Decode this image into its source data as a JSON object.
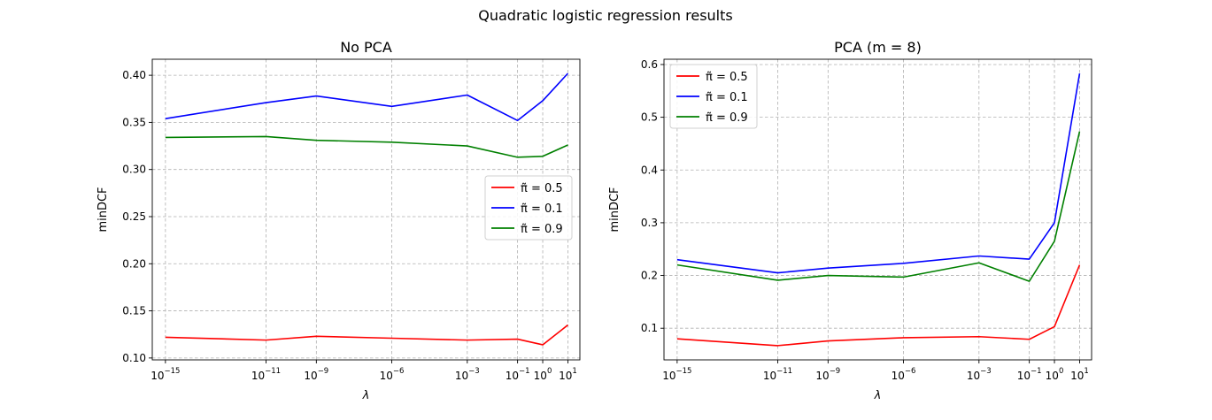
{
  "suptitle": "Quadratic logistic regression results",
  "chart_data": [
    {
      "type": "line",
      "title": "No PCA",
      "xlabel": "λ",
      "ylabel": "minDCF",
      "xscale": "log",
      "grid": true,
      "legend_position": "center-right",
      "x": [
        1e-15,
        1e-11,
        1e-09,
        1e-06,
        0.001,
        0.1,
        1,
        10
      ],
      "xticks": [
        1e-15,
        1e-11,
        1e-09,
        1e-06,
        0.001,
        0.1,
        1,
        10
      ],
      "xtick_labels": [
        {
          "base": "10",
          "exp": "−15"
        },
        {
          "base": "10",
          "exp": "−11"
        },
        {
          "base": "10",
          "exp": "−9"
        },
        {
          "base": "10",
          "exp": "−6"
        },
        {
          "base": "10",
          "exp": "−3"
        },
        {
          "base": "10",
          "exp": "−1"
        },
        {
          "base": "10",
          "exp": "0"
        },
        {
          "base": "10",
          "exp": "1"
        }
      ],
      "ylim": [
        0.098,
        0.417
      ],
      "yticks": [
        0.1,
        0.15,
        0.2,
        0.25,
        0.3,
        0.35,
        0.4
      ],
      "ytick_labels": [
        "0.10",
        "0.15",
        "0.20",
        "0.25",
        "0.30",
        "0.35",
        "0.40"
      ],
      "series": [
        {
          "name": "π̃ = 0.5",
          "color": "#ff0000",
          "values": [
            0.122,
            0.119,
            0.123,
            0.121,
            0.119,
            0.12,
            0.114,
            0.135
          ]
        },
        {
          "name": "π̃ = 0.1",
          "color": "#0000ff",
          "values": [
            0.354,
            0.371,
            0.378,
            0.367,
            0.379,
            0.352,
            0.373,
            0.402
          ]
        },
        {
          "name": "π̃ = 0.9",
          "color": "#008000",
          "values": [
            0.334,
            0.335,
            0.331,
            0.329,
            0.325,
            0.313,
            0.314,
            0.326
          ]
        }
      ]
    },
    {
      "type": "line",
      "title": "PCA (m = 8)",
      "xlabel": "λ",
      "ylabel": "minDCF",
      "xscale": "log",
      "grid": true,
      "legend_position": "top-left",
      "x": [
        1e-15,
        1e-11,
        1e-09,
        1e-06,
        0.001,
        0.1,
        1,
        10
      ],
      "xticks": [
        1e-15,
        1e-11,
        1e-09,
        1e-06,
        0.001,
        0.1,
        1,
        10
      ],
      "xtick_labels": [
        {
          "base": "10",
          "exp": "−15"
        },
        {
          "base": "10",
          "exp": "−11"
        },
        {
          "base": "10",
          "exp": "−9"
        },
        {
          "base": "10",
          "exp": "−6"
        },
        {
          "base": "10",
          "exp": "−3"
        },
        {
          "base": "10",
          "exp": "−1"
        },
        {
          "base": "10",
          "exp": "0"
        },
        {
          "base": "10",
          "exp": "1"
        }
      ],
      "ylim": [
        0.04,
        0.61
      ],
      "yticks": [
        0.1,
        0.2,
        0.3,
        0.4,
        0.5,
        0.6
      ],
      "ytick_labels": [
        "0.1",
        "0.2",
        "0.3",
        "0.4",
        "0.5",
        "0.6"
      ],
      "series": [
        {
          "name": "π̃ = 0.5",
          "color": "#ff0000",
          "values": [
            0.08,
            0.067,
            0.076,
            0.082,
            0.084,
            0.079,
            0.103,
            0.22
          ]
        },
        {
          "name": "π̃ = 0.1",
          "color": "#0000ff",
          "values": [
            0.23,
            0.205,
            0.214,
            0.223,
            0.237,
            0.231,
            0.3,
            0.583
          ]
        },
        {
          "name": "π̃ = 0.9",
          "color": "#008000",
          "values": [
            0.22,
            0.191,
            0.2,
            0.197,
            0.224,
            0.189,
            0.265,
            0.473
          ]
        }
      ]
    }
  ]
}
